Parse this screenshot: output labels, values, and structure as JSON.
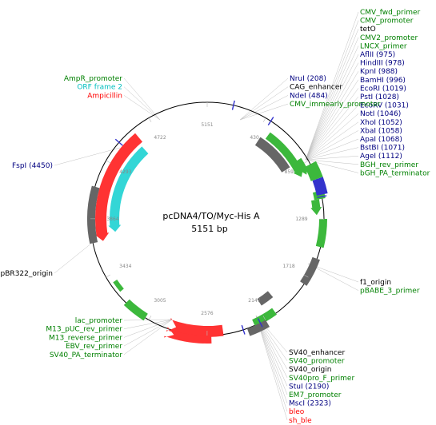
{
  "plasmid": {
    "name": "pcDNA4/TO/Myc-His A",
    "size_label": "5151 bp",
    "length": 5151
  },
  "colors": {
    "green": "#008000",
    "navy": "#000080",
    "red": "#ff0000",
    "cyan": "#00bfbf",
    "black": "#000000",
    "feature_green": "#3cb83c",
    "feature_gray": "#666666",
    "feature_red": "#ff3333",
    "feature_cyan": "#33d6d6",
    "feature_blue": "#3333cc",
    "leader": "#c0c0c0"
  },
  "ticks": [
    "5151",
    "430",
    "859",
    "1289",
    "1718",
    "2147",
    "2576",
    "3005",
    "3434",
    "3864",
    "4293",
    "4722"
  ],
  "labels_top_right": [
    {
      "text": "CMV_fwd_primer",
      "color": "green"
    },
    {
      "text": "CMV_promoter",
      "color": "green"
    },
    {
      "text": "tetO",
      "color": "black"
    },
    {
      "text": "CMV2_promoter",
      "color": "green"
    },
    {
      "text": "LNCX_primer",
      "color": "green"
    },
    {
      "text": "AflII (975)",
      "color": "navy"
    },
    {
      "text": "HindIII (978)",
      "color": "navy"
    },
    {
      "text": "KpnI (988)",
      "color": "navy"
    },
    {
      "text": "BamHI (996)",
      "color": "navy"
    },
    {
      "text": "EcoRI (1019)",
      "color": "navy"
    },
    {
      "text": "PstI (1028)",
      "color": "navy"
    },
    {
      "text": "EcoRV (1031)",
      "color": "navy"
    },
    {
      "text": "NotI (1046)",
      "color": "navy"
    },
    {
      "text": "XhoI (1052)",
      "color": "navy"
    },
    {
      "text": "XbaI (1058)",
      "color": "navy"
    },
    {
      "text": "ApaI (1068)",
      "color": "navy"
    },
    {
      "text": "BstBI (1071)",
      "color": "navy"
    },
    {
      "text": "AgeI (1112)",
      "color": "navy"
    },
    {
      "text": "BGH_rev_primer",
      "color": "green"
    },
    {
      "text": "bGH_PA_terminator",
      "color": "green"
    }
  ],
  "labels_top_mid": [
    {
      "text": "NruI (208)",
      "color": "navy"
    },
    {
      "text": "CAG_enhancer",
      "color": "black"
    },
    {
      "text": "NdeI (484)",
      "color": "navy"
    },
    {
      "text": "CMV_immearly_promoter",
      "color": "green"
    }
  ],
  "labels_top_left": [
    {
      "text": "AmpR_promoter",
      "color": "green"
    },
    {
      "text": "ORF frame 2",
      "color": "cyan"
    },
    {
      "text": "Ampicillin",
      "color": "red"
    }
  ],
  "label_fspi": {
    "text": "FspI (4450)",
    "color": "navy"
  },
  "label_pbr": {
    "text": "pBR322_origin",
    "color": "black"
  },
  "labels_right_mid": [
    {
      "text": "f1_origin",
      "color": "black"
    },
    {
      "text": "pBABE_3_primer",
      "color": "green"
    }
  ],
  "labels_bottom_left": [
    {
      "text": "lac_promoter",
      "color": "green"
    },
    {
      "text": "M13_pUC_rev_primer",
      "color": "green"
    },
    {
      "text": "M13_reverse_primer",
      "color": "green"
    },
    {
      "text": "EBV_rev_primer",
      "color": "green"
    },
    {
      "text": "SV40_PA_terminator",
      "color": "green"
    }
  ],
  "labels_bottom_right": [
    {
      "text": "SV40_enhancer",
      "color": "black"
    },
    {
      "text": "SV40_promoter",
      "color": "green"
    },
    {
      "text": "SV40_origin",
      "color": "black"
    },
    {
      "text": "SV40pro_F_primer",
      "color": "green"
    },
    {
      "text": "StuI (2190)",
      "color": "navy"
    },
    {
      "text": "EM7_promoter",
      "color": "green"
    },
    {
      "text": "MscI (2323)",
      "color": "navy"
    },
    {
      "text": "bleo",
      "color": "red"
    },
    {
      "text": "sh_ble",
      "color": "red"
    }
  ]
}
